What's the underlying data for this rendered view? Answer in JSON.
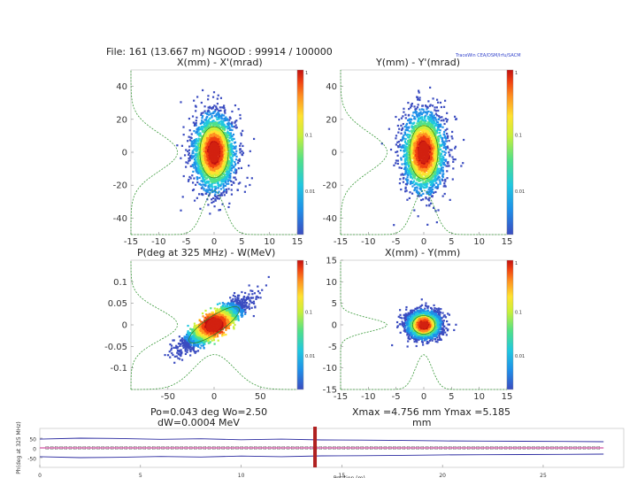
{
  "header": {
    "file_label": "File: 161 (13.667 m)   NGOOD : 99914 / 100000",
    "watermark": "TraceWin   CEA/DSM/Irfu/SACM"
  },
  "colorbar_ticks": [
    "1",
    "0.1",
    "0.01"
  ],
  "colormap": [
    "#3b4cc0",
    "#1f8fe8",
    "#20c7e0",
    "#4fe08a",
    "#c8f03a",
    "#ffe230",
    "#ff9020",
    "#f04010",
    "#c01010"
  ],
  "chart_data": [
    {
      "id": "xxp",
      "type": "heatmap",
      "title": "X(mm) - X'(mrad)",
      "xlim": [
        -15,
        15
      ],
      "ylim": [
        -50,
        50
      ],
      "xticks": [
        "-15",
        "-10",
        "-5",
        "0",
        "5",
        "10",
        "15"
      ],
      "xtick_values": [
        -15,
        -10,
        -5,
        0,
        5,
        10,
        15
      ],
      "yticks": [
        "40",
        "20",
        "0",
        "-20",
        "-40"
      ],
      "ytick_values": [
        40,
        20,
        0,
        -20,
        -40
      ],
      "distribution": {
        "cx": 0,
        "cy": 0,
        "sx": 1.9,
        "sy": 11.5,
        "rho": 0
      }
    },
    {
      "id": "yyp",
      "type": "heatmap",
      "title": "Y(mm) - Y'(mrad)",
      "xlim": [
        -15,
        15
      ],
      "ylim": [
        -50,
        50
      ],
      "xticks": [
        "-15",
        "-10",
        "-5",
        "0",
        "5",
        "10",
        "15"
      ],
      "xtick_values": [
        -15,
        -10,
        -5,
        0,
        5,
        10,
        15
      ],
      "yticks": [
        "40",
        "20",
        "0",
        "-20",
        "-40"
      ],
      "ytick_values": [
        40,
        20,
        0,
        -20,
        -40
      ],
      "distribution": {
        "cx": 0,
        "cy": 0,
        "sx": 1.9,
        "sy": 12.0,
        "rho": 0
      }
    },
    {
      "id": "phase_w",
      "type": "heatmap",
      "title": "P(deg at 325 MHz) - W(MeV)",
      "xlim": [
        -90,
        90
      ],
      "ylim": [
        -0.15,
        0.15
      ],
      "xticks": [
        "-50",
        "0",
        "50"
      ],
      "xtick_values": [
        -50,
        0,
        50
      ],
      "yticks": [
        "0.1",
        "0.05",
        "0",
        "-0.05",
        "-0.1"
      ],
      "ytick_values": [
        0.1,
        0.05,
        0,
        -0.05,
        -0.1
      ],
      "distribution": {
        "cx": 0,
        "cy": 0,
        "sx": 17,
        "sy": 0.028,
        "rho": 0.88
      }
    },
    {
      "id": "xy",
      "type": "heatmap",
      "title": "X(mm) - Y(mm)",
      "xlim": [
        -15,
        15
      ],
      "ylim": [
        -15,
        15
      ],
      "xticks": [
        "-15",
        "-10",
        "-5",
        "0",
        "5",
        "10",
        "15"
      ],
      "xtick_values": [
        -15,
        -10,
        -5,
        0,
        5,
        10,
        15
      ],
      "yticks": [
        "15",
        "10",
        "5",
        "0",
        "-5",
        "-10",
        "-15"
      ],
      "ytick_values": [
        15,
        10,
        5,
        0,
        -5,
        -10,
        -15
      ],
      "distribution": {
        "cx": 0,
        "cy": 0,
        "sx": 1.5,
        "sy": 1.6,
        "rho": 0
      }
    },
    {
      "id": "envelope",
      "type": "line",
      "title": "",
      "xlabel": "Position (m)",
      "ylabel": "Ph(deg at 325 MHz)",
      "xlim": [
        0,
        29
      ],
      "ylim": [
        -100,
        100
      ],
      "xticks": [
        "0",
        "5",
        "10",
        "15",
        "20",
        "25"
      ],
      "xtick_values": [
        0,
        5,
        10,
        15,
        20,
        25
      ],
      "yticks": [
        "50",
        "0",
        "-50"
      ],
      "ytick_values": [
        50,
        0,
        -50
      ],
      "marker_position": 13.667,
      "series": [
        {
          "name": "upper envelope",
          "color": "#2a2aa0",
          "x": [
            0,
            2,
            4,
            6,
            8,
            10,
            12,
            14,
            16,
            18,
            20,
            22,
            24,
            26,
            28
          ],
          "values": [
            45,
            50,
            48,
            44,
            47,
            42,
            45,
            41,
            40,
            38,
            36,
            35,
            34,
            33,
            32
          ]
        },
        {
          "name": "lower envelope",
          "color": "#2a2aa0",
          "x": [
            0,
            2,
            4,
            6,
            8,
            10,
            12,
            14,
            16,
            18,
            20,
            22,
            24,
            26,
            28
          ],
          "values": [
            -45,
            -50,
            -48,
            -44,
            -47,
            -42,
            -45,
            -41,
            -40,
            -38,
            -36,
            -35,
            -34,
            -33,
            -32
          ]
        },
        {
          "name": "reference",
          "color": "#d050a0",
          "x": [
            0,
            28
          ],
          "values": [
            0,
            0
          ]
        }
      ]
    }
  ],
  "info": {
    "phase_line1": "Po=0.043 deg  Wo=2.50",
    "phase_line2": "dW=0.0004 MeV",
    "xy_line1": "Xmax =4.756 mm  Ymax =5.185",
    "xy_line2": "mm"
  }
}
